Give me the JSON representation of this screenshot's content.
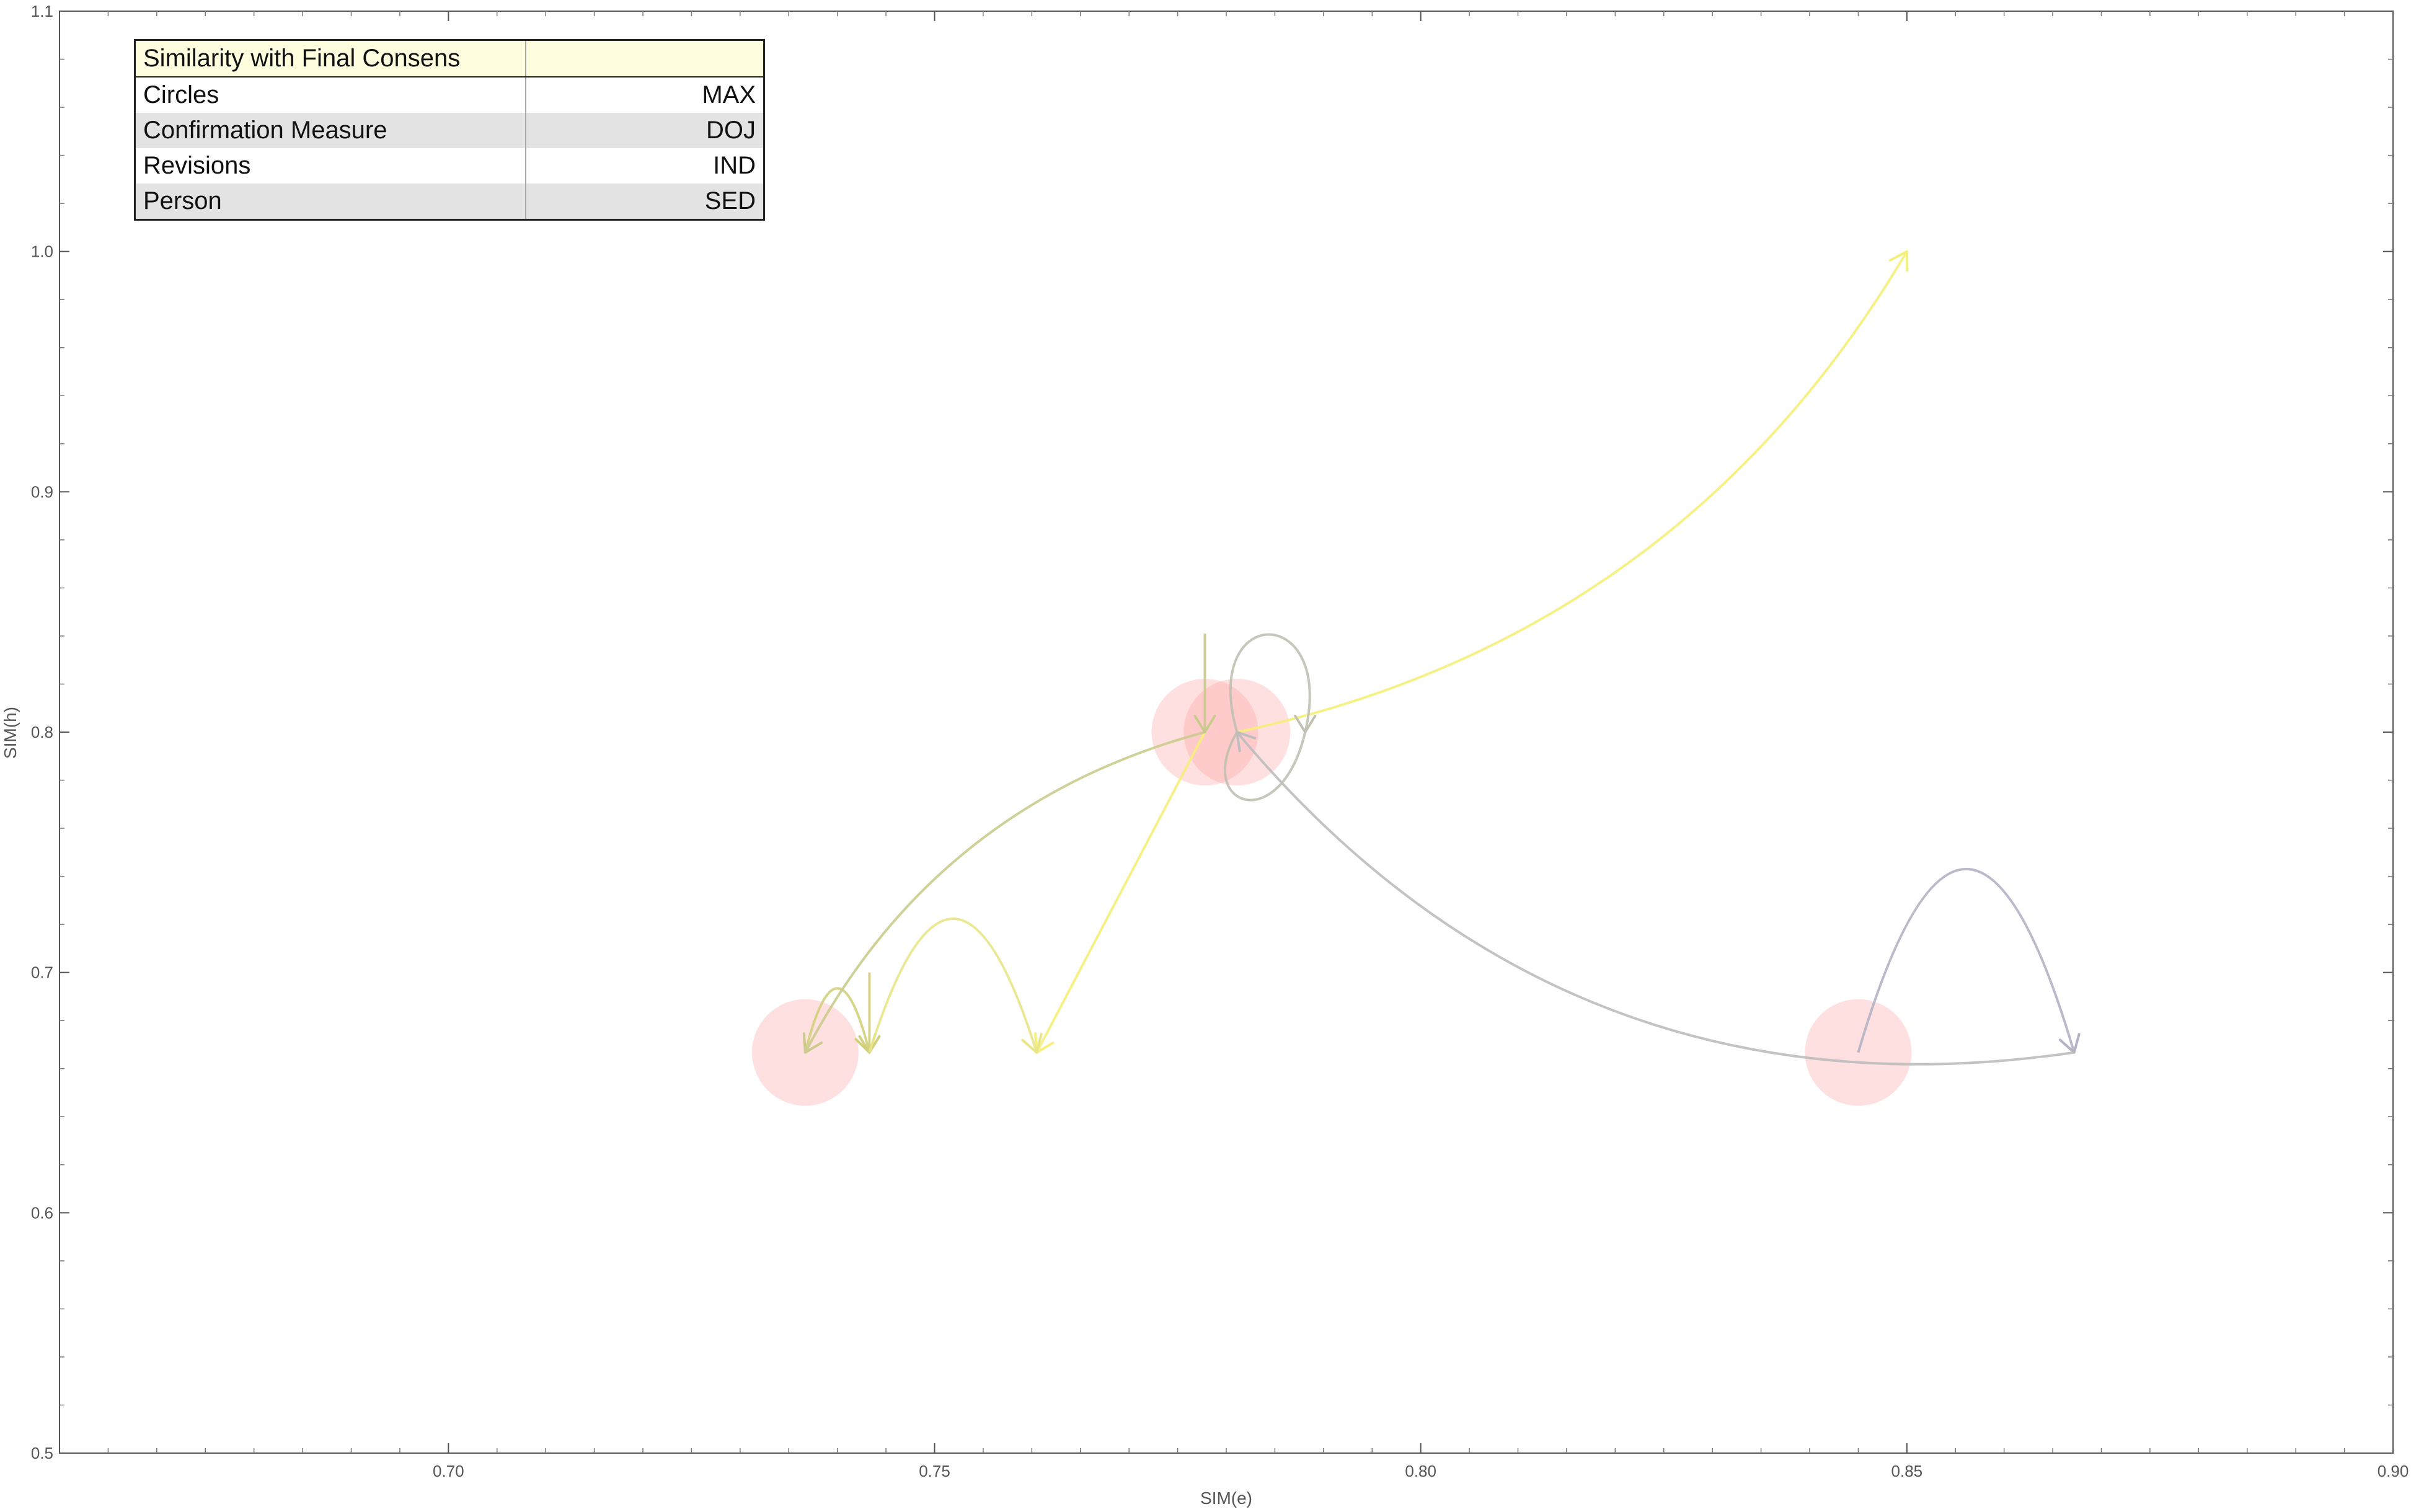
{
  "chart_data": {
    "type": "scatter",
    "title": "",
    "xlabel": "SIM(e)",
    "ylabel": "SIM(h)",
    "xlim": [
      0.66,
      0.9
    ],
    "ylim": [
      0.5,
      1.1
    ],
    "x_ticks": [
      "0.70",
      "0.75",
      "0.80",
      "0.85",
      "0.90"
    ],
    "y_ticks": [
      "0.5",
      "0.6",
      "0.7",
      "0.8",
      "0.9",
      "1.0",
      "1.1"
    ],
    "grid": false,
    "circles": [
      {
        "x": 0.7367,
        "y": 0.6667,
        "color": "#ff9999"
      },
      {
        "x": 0.7778,
        "y": 0.8,
        "color": "#ff9999"
      },
      {
        "x": 0.7811,
        "y": 0.8,
        "color": "#ff9999"
      },
      {
        "x": 0.845,
        "y": 0.6667,
        "color": "#ff9999"
      }
    ],
    "revisions": [
      {
        "from": [
          0.7811,
          0.8
        ],
        "to": [
          0.85,
          1.0
        ],
        "color": "#f5f07a",
        "bend": 0.22
      },
      {
        "from": [
          0.7778,
          0.8
        ],
        "to": [
          0.7605,
          0.6667
        ],
        "color": "#f5f07a",
        "bend": 0.0
      },
      {
        "from": [
          0.7367,
          0.6667
        ],
        "to": [
          0.7433,
          0.6667
        ],
        "color": "#d2d07c",
        "bend": -2.0
      },
      {
        "from": [
          0.7433,
          0.7
        ],
        "to": [
          0.7433,
          0.6667
        ],
        "color": "#d2d07c",
        "bend": 0.0
      },
      {
        "from": [
          0.7433,
          0.6667
        ],
        "to": [
          0.7605,
          0.6667
        ],
        "color": "#e9e68a",
        "bend": -1.6
      },
      {
        "from": [
          0.7778,
          0.8
        ],
        "to": [
          0.7367,
          0.6667
        ],
        "color": "#cbcb8e",
        "bend": 0.22
      },
      {
        "from": [
          0.7778,
          0.841
        ],
        "to": [
          0.7778,
          0.8
        ],
        "color": "#cac98e",
        "bend": 0.0
      },
      {
        "from": [
          0.845,
          0.6667
        ],
        "to": [
          0.8672,
          0.6667
        ],
        "color": "#b4b2c5",
        "bend": -1.7
      },
      {
        "from": [
          0.8672,
          0.6667
        ],
        "to": [
          0.7811,
          0.8
        ],
        "color": "#bdbcbf",
        "bend": -0.28
      }
    ],
    "loop": {
      "center": [
        0.7811,
        0.8
      ],
      "color": "#c1c0b3"
    },
    "legend_table": {
      "placement": "top-left",
      "header": "Similarity with Final Consens",
      "rows": [
        {
          "label": "Circles",
          "value": "MAX"
        },
        {
          "label": "Confirmation Measure",
          "value": "DOJ"
        },
        {
          "label": "Revisions",
          "value": "IND"
        },
        {
          "label": "Person",
          "value": "SED"
        }
      ]
    }
  }
}
